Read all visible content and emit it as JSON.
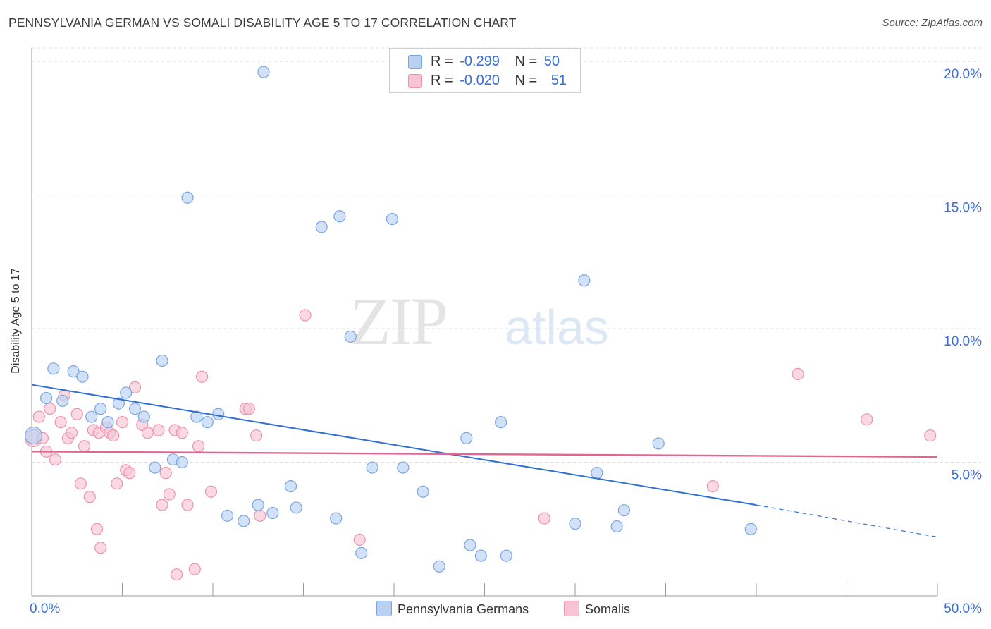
{
  "title": "PENNSYLVANIA GERMAN VS SOMALI DISABILITY AGE 5 TO 17 CORRELATION CHART",
  "source": "Source: ZipAtlas.com",
  "watermark": {
    "zip": "ZIP",
    "atlas": "atlas"
  },
  "legend": {
    "rows": [
      {
        "r_label": "R =",
        "r_value": "-0.299",
        "n_label": "N =",
        "n_value": "50"
      },
      {
        "r_label": "R =",
        "r_value": "-0.020",
        "n_label": "N =",
        "n_value": "51"
      }
    ]
  },
  "colors": {
    "blue_fill": "#b8d1f2",
    "blue_stroke": "#7aa5e0",
    "blue_line": "#2f6fd6",
    "pink_fill": "#f8c4d3",
    "pink_stroke": "#ec93ad",
    "pink_line": "#e06690",
    "tick_label": "#3a6fd8",
    "grid": "#dcdcdc"
  },
  "chart_data": {
    "type": "scatter",
    "ylabel": "Disability Age 5 to 17",
    "xlim": [
      0,
      50
    ],
    "ylim": [
      0,
      20.5
    ],
    "x_tick_labels": [
      "0.0%",
      "50.0%"
    ],
    "y_ticks": [
      5,
      10,
      15,
      20
    ],
    "y_tick_labels": [
      "5.0%",
      "10.0%",
      "15.0%",
      "20.0%"
    ],
    "grid": "horizontal dashed",
    "series": [
      {
        "name": "Pennsylvania Germans",
        "trend": {
          "x": [
            0,
            40
          ],
          "y": [
            7.9,
            3.4
          ],
          "dashed_to": [
            50,
            2.2
          ]
        },
        "points": [
          [
            0.1,
            6.0
          ],
          [
            0.8,
            7.4
          ],
          [
            1.2,
            8.5
          ],
          [
            1.7,
            7.3
          ],
          [
            2.3,
            8.4
          ],
          [
            2.8,
            8.2
          ],
          [
            3.3,
            6.7
          ],
          [
            3.8,
            7.0
          ],
          [
            4.2,
            6.5
          ],
          [
            4.8,
            7.2
          ],
          [
            5.2,
            7.6
          ],
          [
            5.7,
            7.0
          ],
          [
            6.2,
            6.7
          ],
          [
            6.8,
            4.8
          ],
          [
            7.2,
            8.8
          ],
          [
            7.8,
            5.1
          ],
          [
            8.3,
            5.0
          ],
          [
            8.6,
            14.9
          ],
          [
            9.1,
            6.7
          ],
          [
            9.7,
            6.5
          ],
          [
            10.3,
            6.8
          ],
          [
            10.8,
            3.0
          ],
          [
            11.7,
            2.8
          ],
          [
            12.5,
            3.4
          ],
          [
            12.8,
            19.6
          ],
          [
            13.3,
            3.1
          ],
          [
            14.3,
            4.1
          ],
          [
            14.6,
            3.3
          ],
          [
            16.0,
            13.8
          ],
          [
            16.8,
            2.9
          ],
          [
            17.0,
            14.2
          ],
          [
            17.6,
            9.7
          ],
          [
            18.2,
            1.6
          ],
          [
            18.8,
            4.8
          ],
          [
            19.9,
            14.1
          ],
          [
            20.5,
            4.8
          ],
          [
            21.6,
            3.9
          ],
          [
            22.5,
            1.1
          ],
          [
            24.0,
            5.9
          ],
          [
            24.2,
            1.9
          ],
          [
            24.8,
            1.5
          ],
          [
            25.9,
            6.5
          ],
          [
            26.2,
            1.5
          ],
          [
            30.0,
            2.7
          ],
          [
            30.5,
            11.8
          ],
          [
            31.2,
            4.6
          ],
          [
            32.3,
            2.6
          ],
          [
            32.7,
            3.2
          ],
          [
            34.6,
            5.7
          ],
          [
            39.7,
            2.5
          ]
        ]
      },
      {
        "name": "Somalis",
        "trend": {
          "x": [
            0,
            50
          ],
          "y": [
            5.4,
            5.2
          ]
        },
        "points": [
          [
            0.1,
            5.9
          ],
          [
            0.4,
            6.7
          ],
          [
            0.6,
            5.9
          ],
          [
            0.8,
            5.4
          ],
          [
            1.0,
            7.0
          ],
          [
            1.3,
            5.1
          ],
          [
            1.6,
            6.5
          ],
          [
            1.8,
            7.5
          ],
          [
            2.0,
            5.9
          ],
          [
            2.2,
            6.1
          ],
          [
            2.5,
            6.8
          ],
          [
            2.7,
            4.2
          ],
          [
            2.9,
            5.6
          ],
          [
            3.2,
            3.7
          ],
          [
            3.4,
            6.2
          ],
          [
            3.6,
            2.5
          ],
          [
            3.7,
            6.1
          ],
          [
            3.8,
            1.8
          ],
          [
            4.1,
            6.3
          ],
          [
            4.3,
            6.1
          ],
          [
            4.5,
            6.0
          ],
          [
            4.7,
            4.2
          ],
          [
            5.0,
            6.5
          ],
          [
            5.2,
            4.7
          ],
          [
            5.4,
            4.6
          ],
          [
            5.7,
            7.8
          ],
          [
            6.1,
            6.4
          ],
          [
            6.4,
            6.1
          ],
          [
            7.0,
            6.2
          ],
          [
            7.2,
            3.4
          ],
          [
            7.4,
            4.6
          ],
          [
            7.6,
            3.8
          ],
          [
            7.9,
            6.2
          ],
          [
            8.0,
            0.8
          ],
          [
            8.3,
            6.1
          ],
          [
            8.6,
            3.4
          ],
          [
            9.0,
            1.0
          ],
          [
            9.2,
            5.6
          ],
          [
            9.4,
            8.2
          ],
          [
            9.9,
            3.9
          ],
          [
            11.8,
            7.0
          ],
          [
            12.0,
            7.0
          ],
          [
            12.4,
            6.0
          ],
          [
            12.6,
            3.0
          ],
          [
            15.1,
            10.5
          ],
          [
            18.1,
            2.1
          ],
          [
            28.3,
            2.9
          ],
          [
            37.6,
            4.1
          ],
          [
            42.3,
            8.3
          ],
          [
            46.1,
            6.6
          ],
          [
            49.6,
            6.0
          ]
        ]
      }
    ]
  }
}
